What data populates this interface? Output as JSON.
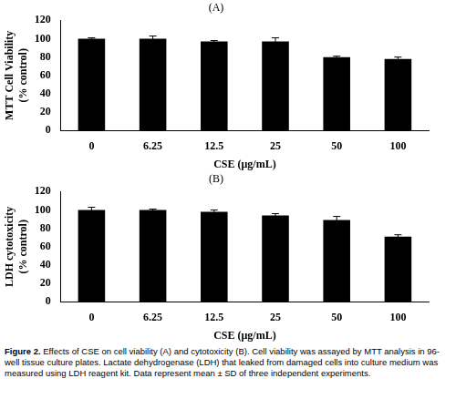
{
  "chart_data": [
    {
      "type": "bar",
      "title": "(A)",
      "categories": [
        "0",
        "6.25",
        "12.5",
        "25",
        "50",
        "100"
      ],
      "values": [
        100,
        100,
        97,
        97,
        80,
        78
      ],
      "errors": [
        1,
        3,
        1,
        4,
        1,
        2
      ],
      "color": "#000000",
      "x_label": "CSE (μg/mL)",
      "y_label": [
        "MTT Cell Viability",
        "(% control)"
      ],
      "ylim": [
        0,
        120
      ],
      "yticks": [
        0,
        20,
        40,
        60,
        80,
        100,
        120
      ],
      "grid": false
    },
    {
      "type": "bar",
      "title": "(B)",
      "categories": [
        "0",
        "6.25",
        "12.5",
        "25",
        "50",
        "100"
      ],
      "values": [
        100,
        100,
        98,
        94,
        89,
        71
      ],
      "errors": [
        3,
        1,
        2,
        2,
        4,
        2
      ],
      "color": "#000000",
      "x_label": "CSE (μg/mL)",
      "y_label": [
        "LDH cytotoxicity",
        "(% control)"
      ],
      "ylim": [
        0,
        120
      ],
      "yticks": [
        0,
        20,
        40,
        60,
        80,
        100,
        120
      ],
      "grid": false
    }
  ],
  "caption_label": "Figure 2.",
  "caption": "Effects of CSE on cell viability (A) and cytotoxicity (B). Cell viability was assayed by MTT analysis in 96-well tissue culture plates. Lactate dehydrogenase (LDH) that leaked from damaged cells into culture medium was measured using LDH reagent kit. Data represent mean ± SD of three independent experiments."
}
